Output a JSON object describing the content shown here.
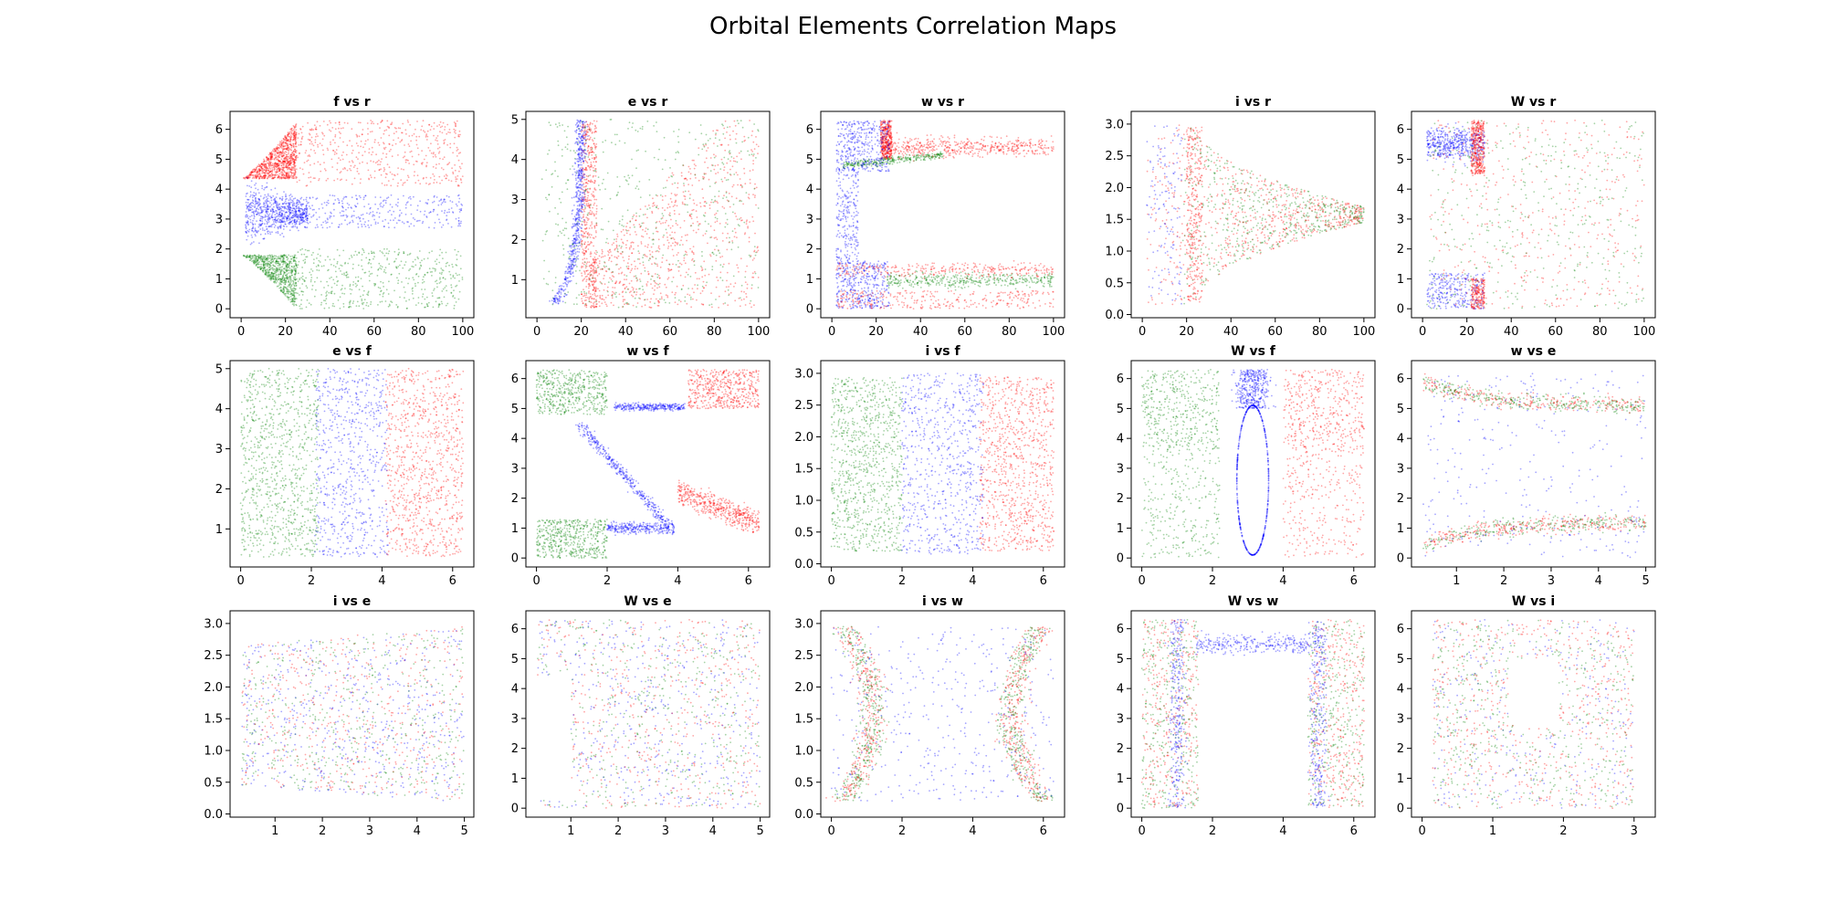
{
  "title": "Orbital Elements Correlation Maps",
  "colors": {
    "red": "#ff0000",
    "green": "#008000",
    "blue": "#0000ff"
  },
  "chart_data": [
    {
      "type": "scatter",
      "title": "f vs r",
      "xlim": [
        -5,
        105
      ],
      "ylim": [
        -0.3,
        6.6
      ],
      "xticks": [
        0,
        20,
        40,
        60,
        80,
        100
      ],
      "yticks": [
        0,
        1,
        2,
        3,
        4,
        5,
        6
      ],
      "pattern": "f_r"
    },
    {
      "type": "scatter",
      "title": "e vs r",
      "xlim": [
        -5,
        105
      ],
      "ylim": [
        0.05,
        5.2
      ],
      "xticks": [
        0,
        20,
        40,
        60,
        80,
        100
      ],
      "yticks": [
        1,
        2,
        3,
        4,
        5
      ],
      "pattern": "e_r"
    },
    {
      "type": "scatter",
      "title": "w vs r",
      "xlim": [
        -5,
        105
      ],
      "ylim": [
        -0.3,
        6.6
      ],
      "xticks": [
        0,
        20,
        40,
        60,
        80,
        100
      ],
      "yticks": [
        0,
        1,
        2,
        3,
        4,
        5,
        6
      ],
      "pattern": "w_r"
    },
    {
      "type": "scatter",
      "title": "i vs r",
      "xlim": [
        -5,
        105
      ],
      "ylim": [
        -0.05,
        3.2
      ],
      "xticks": [
        0,
        20,
        40,
        60,
        80,
        100
      ],
      "yticks": [
        "0.0",
        "0.5",
        "1.0",
        "1.5",
        "2.0",
        "2.5",
        "3.0"
      ],
      "pattern": "i_r"
    },
    {
      "type": "scatter",
      "title": "W vs r",
      "xlim": [
        -5,
        105
      ],
      "ylim": [
        -0.3,
        6.6
      ],
      "xticks": [
        0,
        20,
        40,
        60,
        80,
        100
      ],
      "yticks": [
        0,
        1,
        2,
        3,
        4,
        5,
        6
      ],
      "pattern": "W_r"
    },
    {
      "type": "scatter",
      "title": "e vs f",
      "xlim": [
        -0.3,
        6.6
      ],
      "ylim": [
        0.05,
        5.2
      ],
      "xticks": [
        0,
        2,
        4,
        6
      ],
      "yticks": [
        1,
        2,
        3,
        4,
        5
      ],
      "pattern": "e_f"
    },
    {
      "type": "scatter",
      "title": "w vs f",
      "xlim": [
        -0.3,
        6.6
      ],
      "ylim": [
        -0.3,
        6.6
      ],
      "xticks": [
        0,
        2,
        4,
        6
      ],
      "yticks": [
        0,
        1,
        2,
        3,
        4,
        5,
        6
      ],
      "pattern": "w_f"
    },
    {
      "type": "scatter",
      "title": "i vs f",
      "xlim": [
        -0.3,
        6.6
      ],
      "ylim": [
        -0.05,
        3.2
      ],
      "xticks": [
        0,
        2,
        4,
        6
      ],
      "yticks": [
        "0.0",
        "0.5",
        "1.0",
        "1.5",
        "2.0",
        "2.5",
        "3.0"
      ],
      "pattern": "i_f"
    },
    {
      "type": "scatter",
      "title": "W vs f",
      "xlim": [
        -0.3,
        6.6
      ],
      "ylim": [
        -0.3,
        6.6
      ],
      "xticks": [
        0,
        2,
        4,
        6
      ],
      "yticks": [
        0,
        1,
        2,
        3,
        4,
        5,
        6
      ],
      "pattern": "W_f"
    },
    {
      "type": "scatter",
      "title": "w vs e",
      "xlim": [
        0.05,
        5.2
      ],
      "ylim": [
        -0.3,
        6.6
      ],
      "xticks": [
        1,
        2,
        3,
        4,
        5
      ],
      "yticks": [
        0,
        1,
        2,
        3,
        4,
        5,
        6
      ],
      "pattern": "w_e"
    },
    {
      "type": "scatter",
      "title": "i vs e",
      "xlim": [
        0.05,
        5.2
      ],
      "ylim": [
        -0.05,
        3.2
      ],
      "xticks": [
        1,
        2,
        3,
        4,
        5
      ],
      "yticks": [
        "0.0",
        "0.5",
        "1.0",
        "1.5",
        "2.0",
        "2.5",
        "3.0"
      ],
      "pattern": "i_e"
    },
    {
      "type": "scatter",
      "title": "W vs e",
      "xlim": [
        0.05,
        5.2
      ],
      "ylim": [
        -0.3,
        6.6
      ],
      "xticks": [
        1,
        2,
        3,
        4,
        5
      ],
      "yticks": [
        0,
        1,
        2,
        3,
        4,
        5,
        6
      ],
      "pattern": "W_e"
    },
    {
      "type": "scatter",
      "title": "i vs w",
      "xlim": [
        -0.3,
        6.6
      ],
      "ylim": [
        -0.05,
        3.2
      ],
      "xticks": [
        0,
        2,
        4,
        6
      ],
      "yticks": [
        "0.0",
        "0.5",
        "1.0",
        "1.5",
        "2.0",
        "2.5",
        "3.0"
      ],
      "pattern": "i_w"
    },
    {
      "type": "scatter",
      "title": "W vs w",
      "xlim": [
        -0.3,
        6.6
      ],
      "ylim": [
        -0.3,
        6.6
      ],
      "xticks": [
        0,
        2,
        4,
        6
      ],
      "yticks": [
        0,
        1,
        2,
        3,
        4,
        5,
        6
      ],
      "pattern": "W_w"
    },
    {
      "type": "scatter",
      "title": "W vs i",
      "xlim": [
        -0.15,
        3.3
      ],
      "ylim": [
        -0.3,
        6.6
      ],
      "xticks": [
        0,
        1,
        2,
        3
      ],
      "yticks": [
        0,
        1,
        2,
        3,
        4,
        5,
        6
      ],
      "pattern": "W_i"
    }
  ]
}
